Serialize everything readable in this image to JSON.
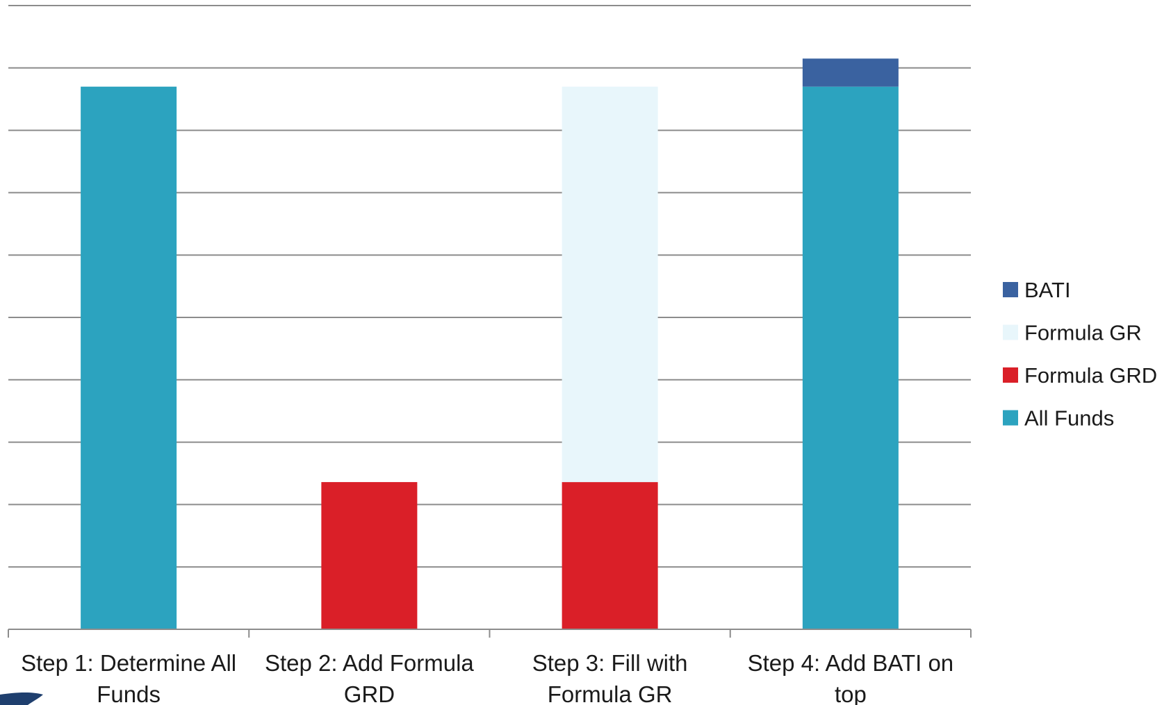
{
  "chart_data": {
    "type": "bar",
    "stacked": true,
    "title": "",
    "xlabel": "",
    "ylabel": "",
    "ylim": [
      0,
      10
    ],
    "grid": true,
    "legend_position": "right",
    "categories": [
      [
        "Step 1:  Determine All",
        "Funds"
      ],
      [
        "Step 2:  Add Formula",
        "GRD"
      ],
      [
        "Step 3:  Fill with",
        "Formula GR"
      ],
      [
        "Step 4:  Add BATI on",
        "top"
      ]
    ],
    "series": [
      {
        "name": "All Funds",
        "color": "#2CA3BF",
        "values": [
          8.7,
          0,
          0,
          8.7
        ]
      },
      {
        "name": "Formula GRD",
        "color": "#DA1F28",
        "values": [
          0,
          2.36,
          2.36,
          0
        ]
      },
      {
        "name": "Formula GR",
        "color": "#E8F6FB",
        "values": [
          0,
          0,
          6.34,
          0
        ]
      },
      {
        "name": "BATI",
        "color": "#3A62A0",
        "values": [
          0,
          0,
          0,
          0.45
        ]
      }
    ],
    "legend_order": [
      "BATI",
      "Formula GR",
      "Formula GRD",
      "All Funds"
    ]
  },
  "decoration": {
    "corner_color": "#1F3F6E"
  }
}
